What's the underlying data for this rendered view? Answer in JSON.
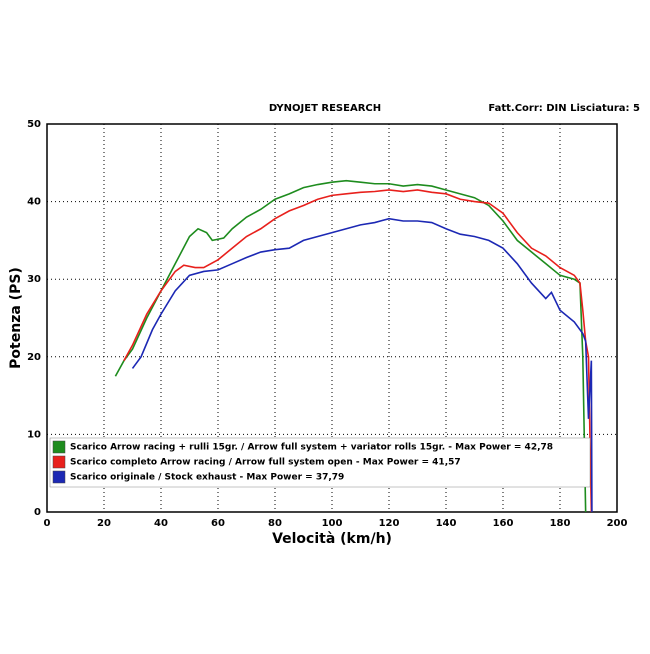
{
  "chart_data": {
    "type": "line",
    "title": "DYNOJET RESEARCH",
    "subtitle": "Fatt.Corr: DIN  Lisciatura: 5",
    "x_label": "Velocità (km/h)",
    "y_label": "Potenza (PS)",
    "xlim": [
      0,
      200
    ],
    "xticks": [
      0,
      20,
      40,
      60,
      80,
      100,
      120,
      140,
      160,
      180,
      200
    ],
    "ylim": [
      0,
      50
    ],
    "yticks": [
      0,
      10,
      20,
      30,
      40,
      50
    ],
    "grid": true,
    "legend": "lower left",
    "series": [
      {
        "name": "Scarico Arrow racing + rulli 15gr. / Arrow full system + variator rolls 15gr. - Max Power = 42,78",
        "color": "#1e8c1e",
        "x": [
          24,
          27,
          30,
          35,
          40,
          45,
          50,
          53,
          56,
          58,
          62,
          65,
          70,
          75,
          80,
          85,
          90,
          95,
          100,
          105,
          110,
          115,
          120,
          125,
          130,
          135,
          140,
          145,
          150,
          155,
          160,
          165,
          170,
          175,
          180,
          185,
          187,
          188,
          189
        ],
        "values": [
          17.5,
          19.5,
          21,
          25,
          28.5,
          32,
          35.5,
          36.5,
          36,
          35,
          35.3,
          36.5,
          38,
          39,
          40.3,
          41,
          41.8,
          42.2,
          42.5,
          42.7,
          42.5,
          42.3,
          42.3,
          42,
          42.2,
          42,
          41.5,
          41,
          40.5,
          39.5,
          37.5,
          35,
          33.5,
          32,
          30.5,
          30,
          29.5,
          20,
          0
        ]
      },
      {
        "name": "Scarico completo Arrow racing / Arrow full system open - Max Power = 41,57",
        "color": "#e8201c",
        "x": [
          27,
          30,
          35,
          40,
          45,
          48,
          52,
          55,
          60,
          65,
          70,
          75,
          80,
          85,
          90,
          95,
          100,
          105,
          110,
          115,
          120,
          125,
          130,
          135,
          140,
          145,
          150,
          155,
          160,
          165,
          170,
          175,
          180,
          185,
          187,
          188,
          189,
          190,
          191
        ],
        "values": [
          19.5,
          21.5,
          25.5,
          28.5,
          31,
          31.8,
          31.5,
          31.5,
          32.5,
          34,
          35.5,
          36.5,
          37.8,
          38.8,
          39.5,
          40.3,
          40.8,
          41,
          41.2,
          41.3,
          41.5,
          41.3,
          41.5,
          41.2,
          41,
          40.3,
          40,
          39.8,
          38.5,
          36,
          34,
          33,
          31.5,
          30.5,
          29.5,
          26,
          22,
          20,
          0
        ]
      },
      {
        "name": "Scarico originale / Stock exhaust - Max Power = 37,79",
        "color": "#1c28b4",
        "x": [
          30,
          33,
          37,
          40,
          45,
          50,
          55,
          60,
          65,
          70,
          75,
          80,
          85,
          90,
          95,
          100,
          105,
          110,
          115,
          120,
          125,
          130,
          135,
          140,
          145,
          150,
          155,
          160,
          165,
          170,
          175,
          177,
          180,
          185,
          188,
          189,
          190,
          191,
          191.2
        ],
        "values": [
          18.5,
          20,
          23.5,
          25.5,
          28.5,
          30.5,
          31,
          31.2,
          32,
          32.8,
          33.5,
          33.8,
          34,
          35,
          35.5,
          36,
          36.5,
          37,
          37.3,
          37.8,
          37.5,
          37.5,
          37.3,
          36.5,
          35.8,
          35.5,
          35,
          34,
          32,
          29.5,
          27.5,
          28.3,
          26,
          24.5,
          23,
          22,
          12,
          19.5,
          0
        ]
      }
    ]
  }
}
